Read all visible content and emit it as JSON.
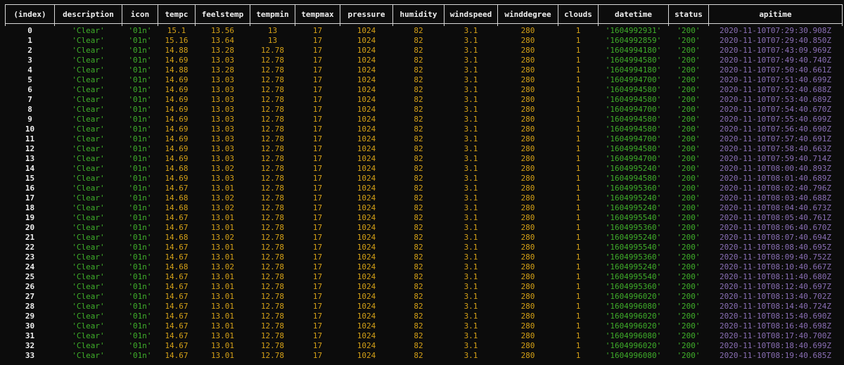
{
  "columns": [
    "(index)",
    "description",
    "icon",
    "tempc",
    "feelstemp",
    "tempmin",
    "tempmax",
    "pressure",
    "humidity",
    "windspeed",
    "winddegree",
    "clouds",
    "datetime",
    "status",
    "apitime"
  ],
  "rows": [
    [
      "0",
      "'Clear'",
      "'01n'",
      "15.1",
      "13.56",
      "13",
      "17",
      "1024",
      "82",
      "3.1",
      "280",
      "1",
      "'1604992931'",
      "'200'",
      "2020-11-10T07:29:30.908Z"
    ],
    [
      "1",
      "'Clear'",
      "'01n'",
      "15.16",
      "13.64",
      "13",
      "17",
      "1024",
      "82",
      "3.1",
      "280",
      "1",
      "'1604992859'",
      "'200'",
      "2020-11-10T07:29:40.850Z"
    ],
    [
      "2",
      "'Clear'",
      "'01n'",
      "14.88",
      "13.28",
      "12.78",
      "17",
      "1024",
      "82",
      "3.1",
      "280",
      "1",
      "'1604994180'",
      "'200'",
      "2020-11-10T07:43:09.969Z"
    ],
    [
      "3",
      "'Clear'",
      "'01n'",
      "14.69",
      "13.03",
      "12.78",
      "17",
      "1024",
      "82",
      "3.1",
      "280",
      "1",
      "'1604994580'",
      "'200'",
      "2020-11-10T07:49:40.740Z"
    ],
    [
      "4",
      "'Clear'",
      "'01n'",
      "14.88",
      "13.28",
      "12.78",
      "17",
      "1024",
      "82",
      "3.1",
      "280",
      "1",
      "'1604994180'",
      "'200'",
      "2020-11-10T07:50:40.661Z"
    ],
    [
      "5",
      "'Clear'",
      "'01n'",
      "14.69",
      "13.03",
      "12.78",
      "17",
      "1024",
      "82",
      "3.1",
      "280",
      "1",
      "'1604994700'",
      "'200'",
      "2020-11-10T07:51:40.699Z"
    ],
    [
      "6",
      "'Clear'",
      "'01n'",
      "14.69",
      "13.03",
      "12.78",
      "17",
      "1024",
      "82",
      "3.1",
      "280",
      "1",
      "'1604994580'",
      "'200'",
      "2020-11-10T07:52:40.688Z"
    ],
    [
      "7",
      "'Clear'",
      "'01n'",
      "14.69",
      "13.03",
      "12.78",
      "17",
      "1024",
      "82",
      "3.1",
      "280",
      "1",
      "'1604994580'",
      "'200'",
      "2020-11-10T07:53:40.689Z"
    ],
    [
      "8",
      "'Clear'",
      "'01n'",
      "14.69",
      "13.03",
      "12.78",
      "17",
      "1024",
      "82",
      "3.1",
      "280",
      "1",
      "'1604994700'",
      "'200'",
      "2020-11-10T07:54:40.670Z"
    ],
    [
      "9",
      "'Clear'",
      "'01n'",
      "14.69",
      "13.03",
      "12.78",
      "17",
      "1024",
      "82",
      "3.1",
      "280",
      "1",
      "'1604994580'",
      "'200'",
      "2020-11-10T07:55:40.699Z"
    ],
    [
      "10",
      "'Clear'",
      "'01n'",
      "14.69",
      "13.03",
      "12.78",
      "17",
      "1024",
      "82",
      "3.1",
      "280",
      "1",
      "'1604994580'",
      "'200'",
      "2020-11-10T07:56:40.690Z"
    ],
    [
      "11",
      "'Clear'",
      "'01n'",
      "14.69",
      "13.03",
      "12.78",
      "17",
      "1024",
      "82",
      "3.1",
      "280",
      "1",
      "'1604994700'",
      "'200'",
      "2020-11-10T07:57:40.691Z"
    ],
    [
      "12",
      "'Clear'",
      "'01n'",
      "14.69",
      "13.03",
      "12.78",
      "17",
      "1024",
      "82",
      "3.1",
      "280",
      "1",
      "'1604994580'",
      "'200'",
      "2020-11-10T07:58:40.663Z"
    ],
    [
      "13",
      "'Clear'",
      "'01n'",
      "14.69",
      "13.03",
      "12.78",
      "17",
      "1024",
      "82",
      "3.1",
      "280",
      "1",
      "'1604994700'",
      "'200'",
      "2020-11-10T07:59:40.714Z"
    ],
    [
      "14",
      "'Clear'",
      "'01n'",
      "14.68",
      "13.02",
      "12.78",
      "17",
      "1024",
      "82",
      "3.1",
      "280",
      "1",
      "'1604995240'",
      "'200'",
      "2020-11-10T08:00:40.893Z"
    ],
    [
      "15",
      "'Clear'",
      "'01n'",
      "14.69",
      "13.03",
      "12.78",
      "17",
      "1024",
      "82",
      "3.1",
      "280",
      "1",
      "'1604994580'",
      "'200'",
      "2020-11-10T08:01:40.689Z"
    ],
    [
      "16",
      "'Clear'",
      "'01n'",
      "14.67",
      "13.01",
      "12.78",
      "17",
      "1024",
      "82",
      "3.1",
      "280",
      "1",
      "'1604995360'",
      "'200'",
      "2020-11-10T08:02:40.796Z"
    ],
    [
      "17",
      "'Clear'",
      "'01n'",
      "14.68",
      "13.02",
      "12.78",
      "17",
      "1024",
      "82",
      "3.1",
      "280",
      "1",
      "'1604995240'",
      "'200'",
      "2020-11-10T08:03:40.688Z"
    ],
    [
      "18",
      "'Clear'",
      "'01n'",
      "14.68",
      "13.02",
      "12.78",
      "17",
      "1024",
      "82",
      "3.1",
      "280",
      "1",
      "'1604995240'",
      "'200'",
      "2020-11-10T08:04:40.673Z"
    ],
    [
      "19",
      "'Clear'",
      "'01n'",
      "14.67",
      "13.01",
      "12.78",
      "17",
      "1024",
      "82",
      "3.1",
      "280",
      "1",
      "'1604995540'",
      "'200'",
      "2020-11-10T08:05:40.761Z"
    ],
    [
      "20",
      "'Clear'",
      "'01n'",
      "14.67",
      "13.01",
      "12.78",
      "17",
      "1024",
      "82",
      "3.1",
      "280",
      "1",
      "'1604995360'",
      "'200'",
      "2020-11-10T08:06:40.670Z"
    ],
    [
      "21",
      "'Clear'",
      "'01n'",
      "14.68",
      "13.02",
      "12.78",
      "17",
      "1024",
      "82",
      "3.1",
      "280",
      "1",
      "'1604995240'",
      "'200'",
      "2020-11-10T08:07:40.694Z"
    ],
    [
      "22",
      "'Clear'",
      "'01n'",
      "14.67",
      "13.01",
      "12.78",
      "17",
      "1024",
      "82",
      "3.1",
      "280",
      "1",
      "'1604995540'",
      "'200'",
      "2020-11-10T08:08:40.695Z"
    ],
    [
      "23",
      "'Clear'",
      "'01n'",
      "14.67",
      "13.01",
      "12.78",
      "17",
      "1024",
      "82",
      "3.1",
      "280",
      "1",
      "'1604995360'",
      "'200'",
      "2020-11-10T08:09:40.752Z"
    ],
    [
      "24",
      "'Clear'",
      "'01n'",
      "14.68",
      "13.02",
      "12.78",
      "17",
      "1024",
      "82",
      "3.1",
      "280",
      "1",
      "'1604995240'",
      "'200'",
      "2020-11-10T08:10:40.667Z"
    ],
    [
      "25",
      "'Clear'",
      "'01n'",
      "14.67",
      "13.01",
      "12.78",
      "17",
      "1024",
      "82",
      "3.1",
      "280",
      "1",
      "'1604995540'",
      "'200'",
      "2020-11-10T08:11:40.680Z"
    ],
    [
      "26",
      "'Clear'",
      "'01n'",
      "14.67",
      "13.01",
      "12.78",
      "17",
      "1024",
      "82",
      "3.1",
      "280",
      "1",
      "'1604995360'",
      "'200'",
      "2020-11-10T08:12:40.697Z"
    ],
    [
      "27",
      "'Clear'",
      "'01n'",
      "14.67",
      "13.01",
      "12.78",
      "17",
      "1024",
      "82",
      "3.1",
      "280",
      "1",
      "'1604996020'",
      "'200'",
      "2020-11-10T08:13:40.702Z"
    ],
    [
      "28",
      "'Clear'",
      "'01n'",
      "14.67",
      "13.01",
      "12.78",
      "17",
      "1024",
      "82",
      "3.1",
      "280",
      "1",
      "'1604996080'",
      "'200'",
      "2020-11-10T08:14:40.724Z"
    ],
    [
      "29",
      "'Clear'",
      "'01n'",
      "14.67",
      "13.01",
      "12.78",
      "17",
      "1024",
      "82",
      "3.1",
      "280",
      "1",
      "'1604996020'",
      "'200'",
      "2020-11-10T08:15:40.690Z"
    ],
    [
      "30",
      "'Clear'",
      "'01n'",
      "14.67",
      "13.01",
      "12.78",
      "17",
      "1024",
      "82",
      "3.1",
      "280",
      "1",
      "'1604996020'",
      "'200'",
      "2020-11-10T08:16:40.698Z"
    ],
    [
      "31",
      "'Clear'",
      "'01n'",
      "14.67",
      "13.01",
      "12.78",
      "17",
      "1024",
      "82",
      "3.1",
      "280",
      "1",
      "'1604996080'",
      "'200'",
      "2020-11-10T08:17:40.700Z"
    ],
    [
      "32",
      "'Clear'",
      "'01n'",
      "14.67",
      "13.01",
      "12.78",
      "17",
      "1024",
      "82",
      "3.1",
      "280",
      "1",
      "'1604996020'",
      "'200'",
      "2020-11-10T08:18:40.699Z"
    ],
    [
      "33",
      "'Clear'",
      "'01n'",
      "14.67",
      "13.01",
      "12.78",
      "17",
      "1024",
      "82",
      "3.1",
      "280",
      "1",
      "'1604996080'",
      "'200'",
      "2020-11-10T08:19:40.685Z"
    ]
  ],
  "column_types": [
    "idx",
    "str",
    "str",
    "num",
    "num",
    "num",
    "num",
    "num",
    "num",
    "num",
    "num",
    "num",
    "str",
    "str",
    "date"
  ],
  "colors": {
    "background": "#0c0c0c",
    "header_text": "#f0f0f0",
    "string_value": "#3fae2a",
    "number_value": "#d4a017",
    "date_value": "#8a6fb5",
    "border": "#d8d8d8"
  }
}
